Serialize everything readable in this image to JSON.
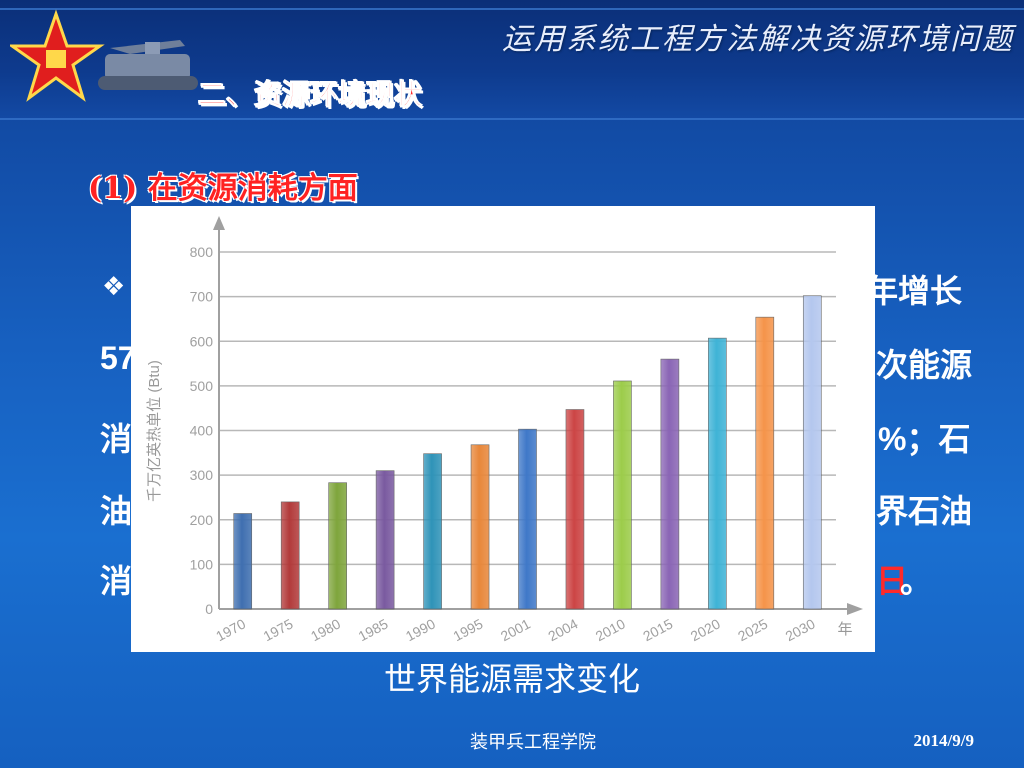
{
  "header": {
    "course_title": "运用系统工程方法解决资源环境问题",
    "section_title": "二、资源环境现状"
  },
  "subsection": "(1) 在资源消耗方面",
  "body_fragments": {
    "l1": "年增长",
    "l2a": "57",
    "l2b": "次能源",
    "l3a": "消",
    "l3b": "%；石",
    "l4a": "油",
    "l4b": "界石油",
    "l5a": "消",
    "l5b": "日",
    "l5c": "。"
  },
  "caption": "世界能源需求变化",
  "footer": {
    "institution": "装甲兵工程学院",
    "date": "2014/9/9"
  },
  "chart_data": {
    "type": "bar",
    "categories": [
      "1970",
      "1975",
      "1980",
      "1985",
      "1990",
      "1995",
      "2001",
      "2004",
      "2010",
      "2015",
      "2020",
      "2025",
      "2030"
    ],
    "values": [
      214,
      240,
      283,
      310,
      348,
      368,
      403,
      447,
      511,
      560,
      607,
      654,
      702
    ],
    "colors": [
      "#3f6fb0",
      "#b23a3a",
      "#7fa53c",
      "#7a5aa0",
      "#2f93b8",
      "#e8873a",
      "#3f78c8",
      "#cc4545",
      "#9ccc4a",
      "#8a65b5",
      "#3fb3d6",
      "#f5944a",
      "#b4c7ee"
    ],
    "ylabel": "千万亿英热单位 (Btu)",
    "xlabel": "年",
    "ylim": [
      0,
      800
    ],
    "yticks": [
      0,
      100,
      200,
      300,
      400,
      500,
      600,
      700,
      800
    ],
    "grid": true
  }
}
